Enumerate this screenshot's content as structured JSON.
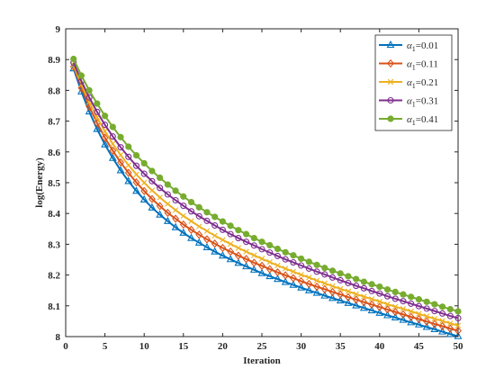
{
  "chart_data": {
    "type": "line",
    "title": "",
    "xlabel": "Iteration",
    "ylabel": "log(Energy)",
    "xlim": [
      0,
      50
    ],
    "ylim": [
      8,
      9
    ],
    "xticks": [
      0,
      5,
      10,
      15,
      20,
      25,
      30,
      35,
      40,
      45,
      50
    ],
    "yticks": [
      8,
      8.1,
      8.2,
      8.3,
      8.4,
      8.5,
      8.6,
      8.7,
      8.8,
      8.9,
      9
    ],
    "ytick_labels": [
      "8",
      "8.1",
      "8.2",
      "8.3",
      "8.4",
      "8.5",
      "8.6",
      "8.7",
      "8.8",
      "8.9",
      "9"
    ],
    "grid": false,
    "legend_position": "top-right",
    "x": [
      1,
      2,
      3,
      4,
      5,
      6,
      7,
      8,
      9,
      10,
      11,
      12,
      13,
      14,
      15,
      16,
      17,
      18,
      19,
      20,
      21,
      22,
      23,
      24,
      25,
      26,
      27,
      28,
      29,
      30,
      31,
      32,
      33,
      34,
      35,
      36,
      37,
      38,
      39,
      40,
      41,
      42,
      43,
      44,
      45,
      46,
      47,
      48,
      49,
      50
    ],
    "series": [
      {
        "name": "α1=0.01",
        "label_prefix": "α",
        "label_sub": "1",
        "label_suffix": "=0.01",
        "color": "#0072BD",
        "marker": "triangle",
        "values": [
          8.871,
          8.796,
          8.731,
          8.674,
          8.624,
          8.58,
          8.54,
          8.505,
          8.473,
          8.445,
          8.419,
          8.396,
          8.375,
          8.355,
          8.337,
          8.32,
          8.305,
          8.29,
          8.276,
          8.263,
          8.251,
          8.239,
          8.228,
          8.217,
          8.206,
          8.196,
          8.187,
          8.177,
          8.168,
          8.159,
          8.15,
          8.142,
          8.133,
          8.125,
          8.117,
          8.109,
          8.101,
          8.093,
          8.085,
          8.077,
          8.069,
          8.062,
          8.054,
          8.046,
          8.039,
          8.031,
          8.024,
          8.016,
          8.008,
          8.001
        ]
      },
      {
        "name": "α1=0.11",
        "label_prefix": "α",
        "label_sub": "1",
        "label_suffix": "=0.11",
        "color": "#D95319",
        "marker": "diamond",
        "values": [
          8.877,
          8.808,
          8.747,
          8.694,
          8.646,
          8.604,
          8.566,
          8.532,
          8.501,
          8.473,
          8.447,
          8.424,
          8.402,
          8.383,
          8.364,
          8.347,
          8.331,
          8.316,
          8.302,
          8.288,
          8.276,
          8.263,
          8.252,
          8.24,
          8.23,
          8.219,
          8.209,
          8.199,
          8.19,
          8.18,
          8.171,
          8.162,
          8.154,
          8.145,
          8.137,
          8.128,
          8.12,
          8.112,
          8.104,
          8.096,
          8.088,
          8.08,
          8.072,
          8.064,
          8.057,
          8.049,
          8.041,
          8.034,
          8.026,
          8.019
        ]
      },
      {
        "name": "α1=0.21",
        "label_prefix": "α",
        "label_sub": "1",
        "label_suffix": "=0.21",
        "color": "#EDB120",
        "marker": "x",
        "values": [
          8.883,
          8.819,
          8.762,
          8.712,
          8.667,
          8.626,
          8.59,
          8.557,
          8.527,
          8.5,
          8.475,
          8.452,
          8.431,
          8.411,
          8.392,
          8.375,
          8.358,
          8.343,
          8.328,
          8.314,
          8.301,
          8.288,
          8.276,
          8.264,
          8.253,
          8.242,
          8.231,
          8.221,
          8.211,
          8.201,
          8.192,
          8.182,
          8.173,
          8.164,
          8.155,
          8.147,
          8.138,
          8.13,
          8.122,
          8.114,
          8.105,
          8.097,
          8.09,
          8.082,
          8.074,
          8.066,
          8.058,
          8.051,
          8.043,
          8.036
        ]
      },
      {
        "name": "α1=0.31",
        "label_prefix": "α",
        "label_sub": "1",
        "label_suffix": "=0.31",
        "color": "#7E2F8E",
        "marker": "circle",
        "values": [
          8.89,
          8.83,
          8.777,
          8.73,
          8.688,
          8.65,
          8.615,
          8.584,
          8.555,
          8.529,
          8.505,
          8.483,
          8.462,
          8.443,
          8.425,
          8.407,
          8.391,
          8.376,
          8.361,
          8.347,
          8.333,
          8.32,
          8.308,
          8.296,
          8.284,
          8.273,
          8.262,
          8.251,
          8.241,
          8.231,
          8.221,
          8.211,
          8.202,
          8.192,
          8.183,
          8.174,
          8.165,
          8.157,
          8.148,
          8.14,
          8.131,
          8.123,
          8.115,
          8.107,
          8.099,
          8.091,
          8.083,
          8.075,
          8.067,
          8.06
        ]
      },
      {
        "name": "α1=0.41",
        "label_prefix": "α",
        "label_sub": "1",
        "label_suffix": "=0.41",
        "color": "#77AC30",
        "marker": "star",
        "values": [
          8.902,
          8.848,
          8.8,
          8.757,
          8.717,
          8.681,
          8.648,
          8.617,
          8.589,
          8.563,
          8.538,
          8.516,
          8.494,
          8.474,
          8.455,
          8.437,
          8.42,
          8.404,
          8.389,
          8.374,
          8.36,
          8.346,
          8.333,
          8.32,
          8.308,
          8.297,
          8.285,
          8.274,
          8.264,
          8.253,
          8.243,
          8.233,
          8.223,
          8.214,
          8.205,
          8.196,
          8.187,
          8.178,
          8.17,
          8.162,
          8.153,
          8.145,
          8.137,
          8.129,
          8.121,
          8.113,
          8.105,
          8.097,
          8.089,
          8.082
        ]
      }
    ]
  }
}
